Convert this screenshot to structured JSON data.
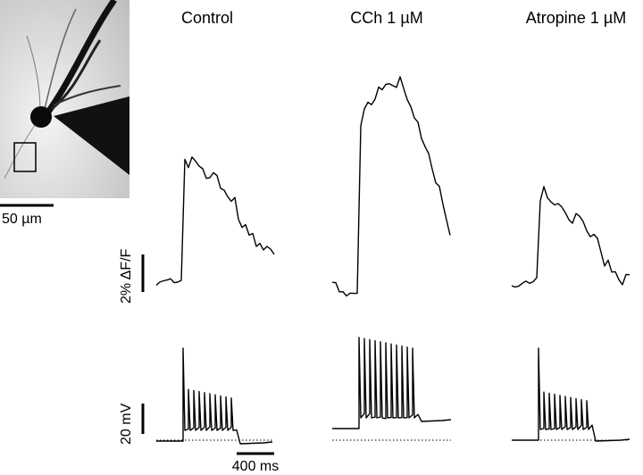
{
  "image_scale_bar": "50 µm",
  "panels": [
    {
      "title": "Control"
    },
    {
      "title": "CCh 1 µM"
    },
    {
      "title": "Atropine 1 µM"
    }
  ],
  "fluorescence_scale_bar": "2% ΔF/F",
  "voltage_scale_bar": "20 mV",
  "time_scale_bar": "400 ms"
}
